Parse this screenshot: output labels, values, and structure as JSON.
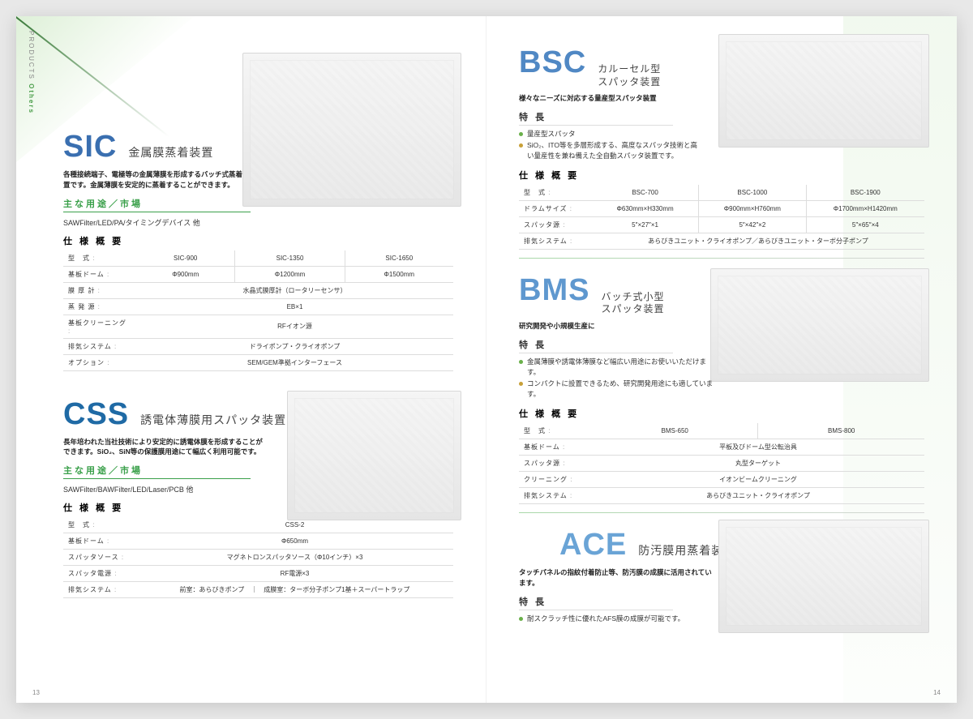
{
  "meta": {
    "sideTab": {
      "line1": "PRODUCTS",
      "line2": "Others"
    },
    "pageLeft": "13",
    "pageRight": "14"
  },
  "colors": {
    "sic": "#3a6fb0",
    "css": "#1f6aa5",
    "bsc": "#5088c4",
    "bms": "#5f98cf",
    "ace": "#6aa4d6",
    "sectionRule": "#3aa04a",
    "bulletGreen": "#6ab04a",
    "bulletGold": "#c8a038"
  },
  "sections": {
    "uses": "主な用途／市場",
    "features": "特 長",
    "spec": "仕 様 概 要"
  },
  "products": {
    "sic": {
      "code": "SIC",
      "title": "金属膜蒸着装置",
      "desc": "各種接続端子、電極等の金属薄膜を形成するバッチ式蒸着装置です。金属薄膜を安定的に蒸着することができます。",
      "uses": "SAWFilter/LED/PA/タイミングデバイス 他",
      "spec": {
        "headers": [
          "型　式",
          "SIC-900",
          "SIC-1350",
          "SIC-1650"
        ],
        "rows": [
          {
            "label": "基板ドーム",
            "vals": [
              "Φ900mm",
              "Φ1200mm",
              "Φ1500mm"
            ]
          },
          {
            "label": "膜 厚 計",
            "span": "水晶式膜厚計（ロータリーセンサ）"
          },
          {
            "label": "蒸 発 源",
            "span": "EB×1"
          },
          {
            "label": "基板クリーニング",
            "span": "RFイオン源"
          },
          {
            "label": "排気システム",
            "span": "ドライポンプ・クライオポンプ"
          },
          {
            "label": "オプション",
            "span": "SEM/GEM準拠インターフェース"
          }
        ]
      }
    },
    "css": {
      "code": "CSS",
      "title": "誘電体薄膜用スパッタ装置",
      "desc": "長年培われた当社技術により安定的に誘電体膜を形成することができます。SiO₂、SiN等の保護膜用途にて幅広く利用可能です。",
      "uses": "SAWFilter/BAWFilter/LED/Laser/PCB 他",
      "spec": {
        "headers": [
          "型　式",
          "CSS-2"
        ],
        "rows": [
          {
            "label": "基板ドーム",
            "span": "Φ650mm"
          },
          {
            "label": "スパッタソース",
            "span": "マグネトロンスパッタソース（Φ10インチ）×3"
          },
          {
            "label": "スパッタ電源",
            "span": "RF電源×3"
          },
          {
            "label": "排気システム",
            "span": "前室：あらびきポンプ　｜　成膜室：ターボ分子ポンプ1基＋スーパートラップ"
          }
        ]
      }
    },
    "bsc": {
      "code": "BSC",
      "title1": "カルーセル型",
      "title2": "スパッタ装置",
      "desc": "様々なニーズに対応する量産型スパッタ装置",
      "features": [
        "量産型スパッタ",
        "SiO₂、ITO等を多層形成する、高度なスパッタ技術と高い量産性を兼ね備えた全自動スパッタ装置です。"
      ],
      "spec": {
        "headers": [
          "型　式",
          "BSC-700",
          "BSC-1000",
          "BSC-1900"
        ],
        "rows": [
          {
            "label": "ドラムサイズ",
            "vals": [
              "Φ630mm×H330mm",
              "Φ900mm×H760mm",
              "Φ1700mm×H1420mm"
            ]
          },
          {
            "label": "スパッタ源",
            "vals": [
              "5″×27″×1",
              "5″×42″×2",
              "5″×65″×4"
            ]
          },
          {
            "label": "排気システム",
            "span": "あらびきユニット・クライオポンプ／あらびきユニット・ターボ分子ポンプ"
          }
        ]
      }
    },
    "bms": {
      "code": "BMS",
      "title1": "バッチ式小型",
      "title2": "スパッタ装置",
      "desc": "研究開発や小規模生産に",
      "features": [
        "金属薄膜や誘電体薄膜など幅広い用途にお使いいただけます。",
        "コンパクトに設置できるため、研究開発用途にも適しています。"
      ],
      "spec": {
        "headers": [
          "型　式",
          "BMS-650",
          "BMS-800"
        ],
        "rows": [
          {
            "label": "基板ドーム",
            "span": "平板及びドーム型公転治具"
          },
          {
            "label": "スパッタ源",
            "span": "丸型ターゲット"
          },
          {
            "label": "クリーニング",
            "span": "イオンビームクリーニング"
          },
          {
            "label": "排気システム",
            "span": "あらびきユニット・クライオポンプ"
          }
        ]
      }
    },
    "ace": {
      "code": "ACE",
      "title": "防汚膜用蒸着装置",
      "desc": "タッチパネルの指紋付着防止等、防汚膜の成膜に活用されています。",
      "features": [
        "耐スクラッチ性に優れたAFS膜の成膜が可能です。"
      ]
    }
  }
}
